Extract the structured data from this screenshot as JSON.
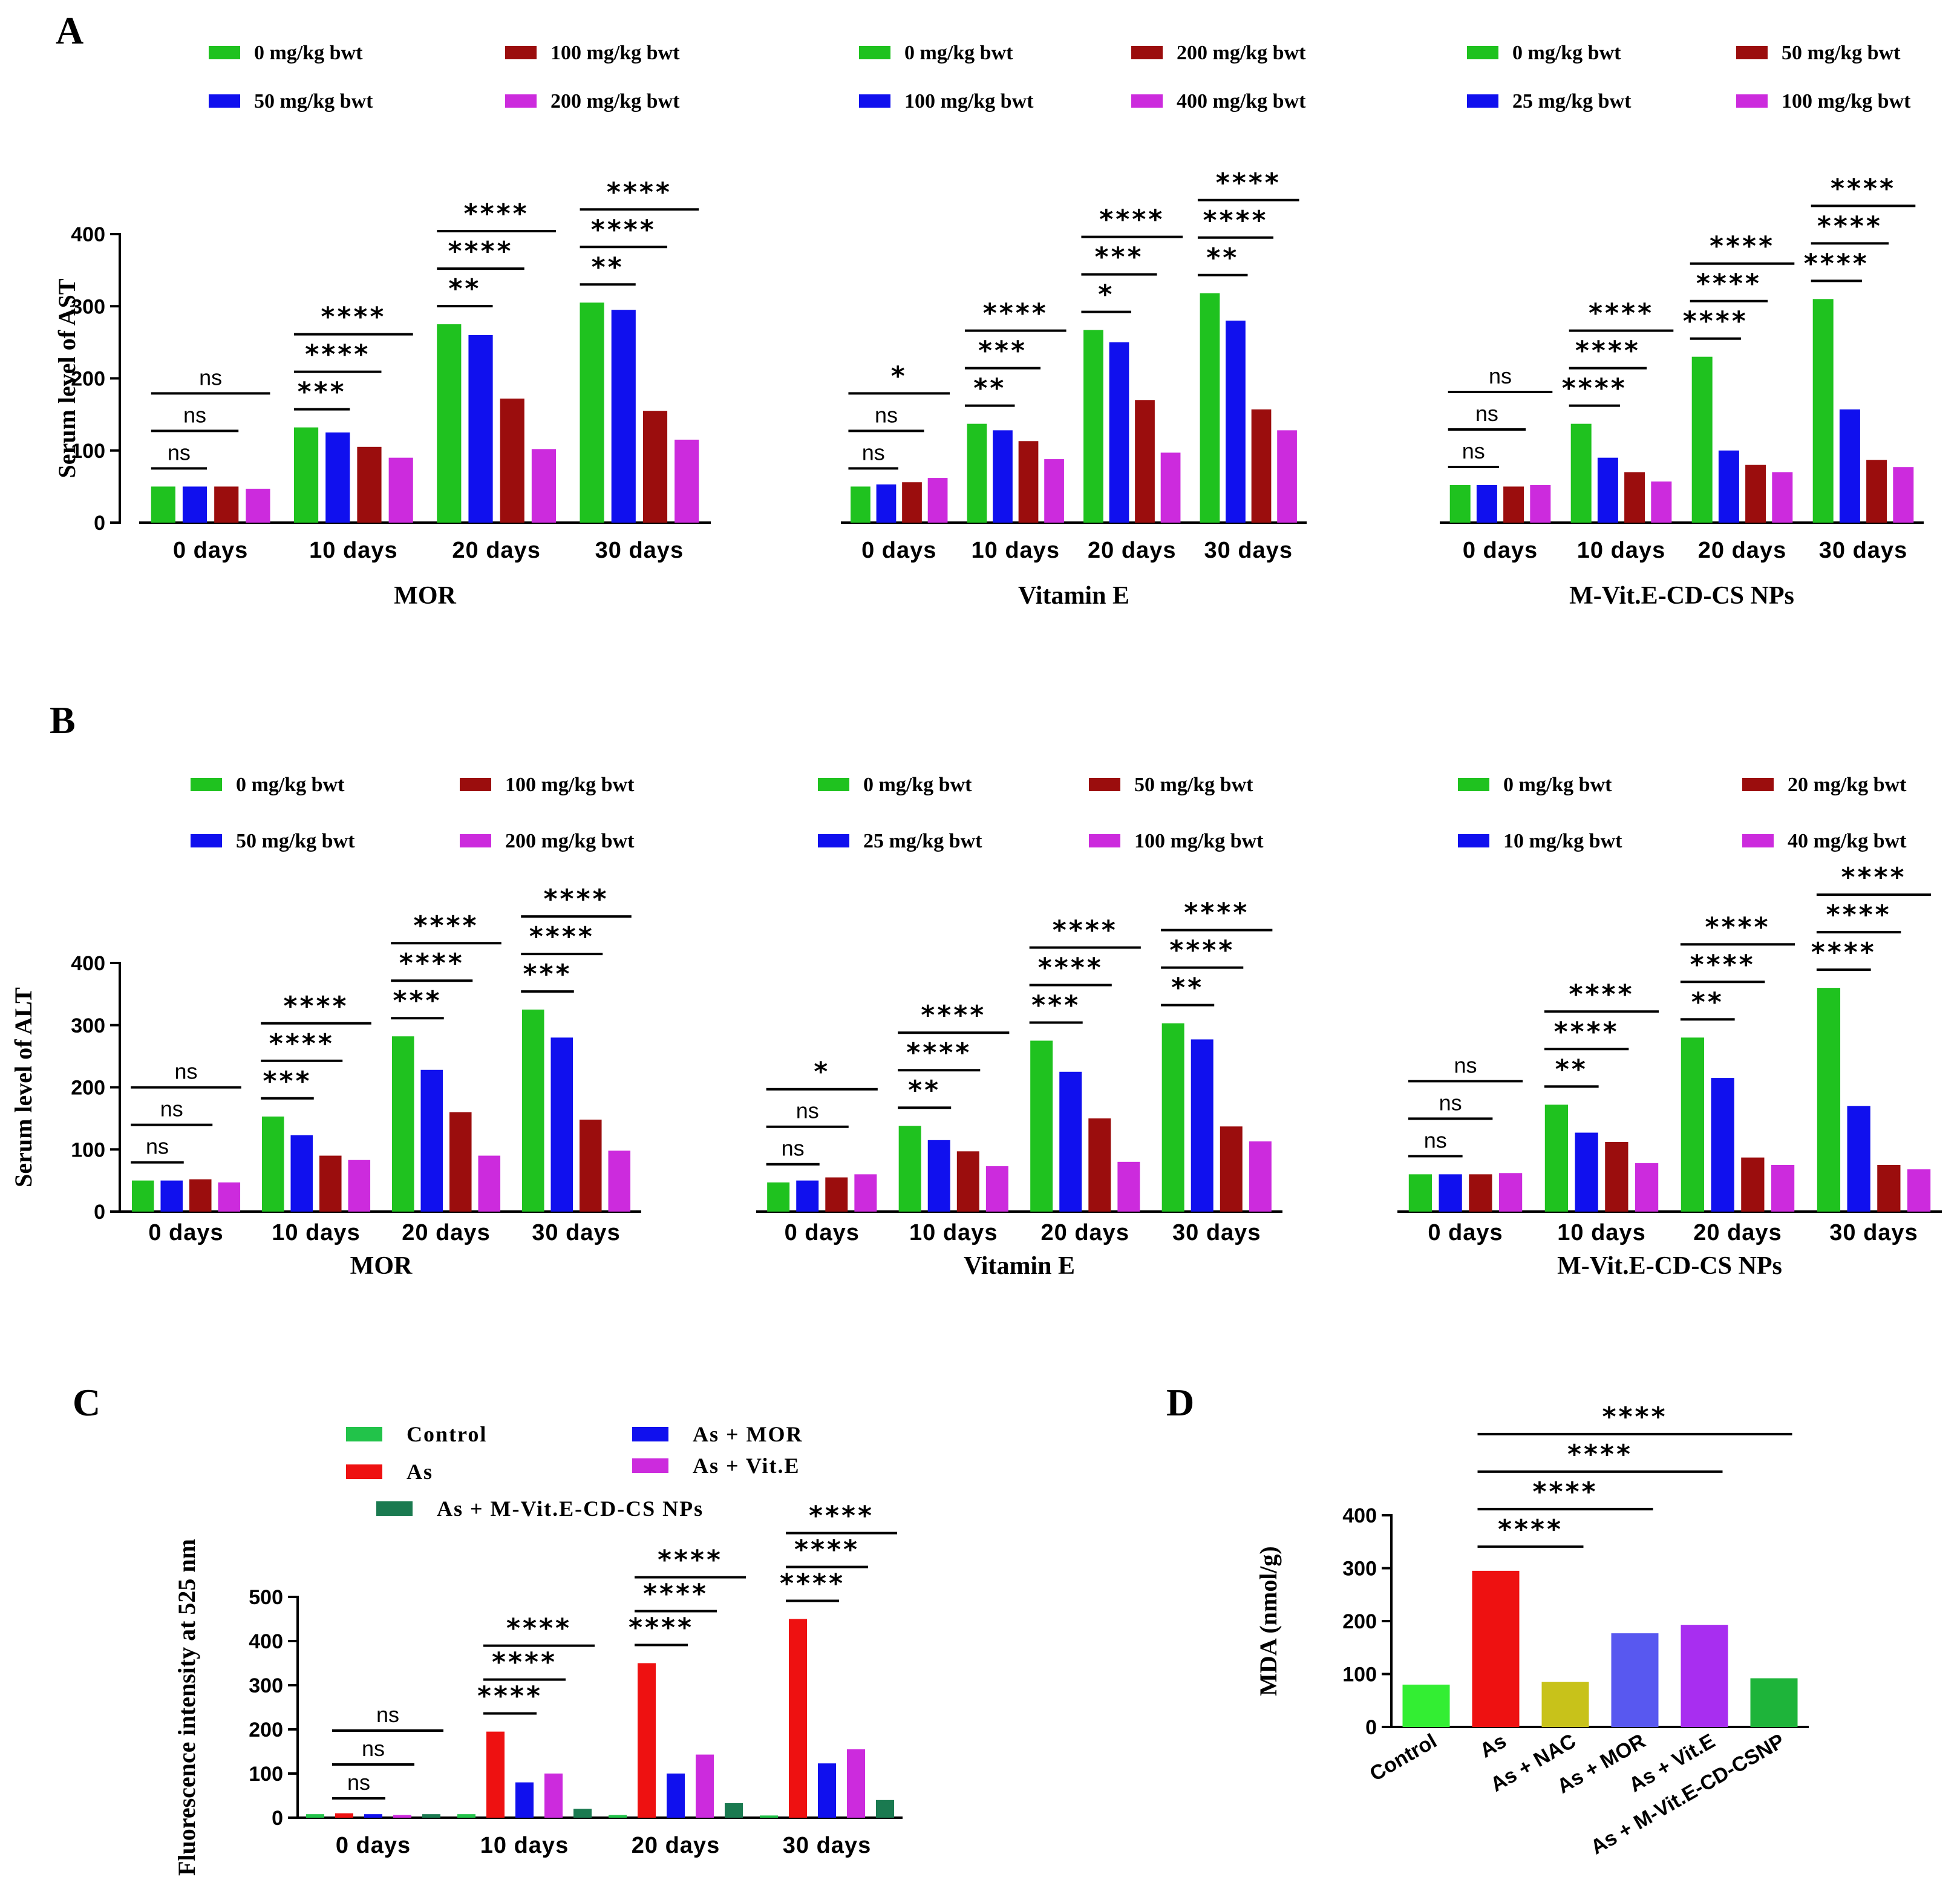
{
  "chart_data": [
    {
      "panel": "A",
      "type": "bar",
      "ylabel": "Serum level of AST",
      "ylim": [
        0,
        400
      ],
      "yticks": [
        0,
        100,
        200,
        300,
        400
      ],
      "colors": [
        "#1fc21f",
        "#1010ee",
        "#9b0d0d",
        "#cc2bdd"
      ],
      "groups": [
        {
          "subtitle": "MOR",
          "legend": [
            "0 mg/kg bwt",
            "50 mg/kg bwt",
            "100 mg/kg bwt",
            "200 mg/kg bwt"
          ],
          "categories": [
            "0 days",
            "10 days",
            "20 days",
            "30 days"
          ],
          "series": [
            {
              "name": "0 mg/kg bwt",
              "values": [
                50,
                132,
                275,
                305
              ]
            },
            {
              "name": "50 mg/kg bwt",
              "values": [
                50,
                125,
                260,
                295
              ]
            },
            {
              "name": "100 mg/kg bwt",
              "values": [
                50,
                105,
                172,
                155
              ]
            },
            {
              "name": "200 mg/kg bwt",
              "values": [
                47,
                90,
                102,
                115
              ]
            }
          ],
          "significance": [
            [
              "ns",
              "ns",
              "ns"
            ],
            [
              "***",
              "****",
              "****"
            ],
            [
              "**",
              "****",
              "****"
            ],
            [
              "**",
              "****",
              "****"
            ]
          ]
        },
        {
          "subtitle": "Vitamin E",
          "legend": [
            "0 mg/kg bwt",
            "100 mg/kg bwt",
            "200 mg/kg bwt",
            "400 mg/kg bwt"
          ],
          "categories": [
            "0 days",
            "10 days",
            "20 days",
            "30 days"
          ],
          "series": [
            {
              "name": "0 mg/kg bwt",
              "values": [
                50,
                137,
                267,
                318
              ]
            },
            {
              "name": "100 mg/kg bwt",
              "values": [
                53,
                128,
                250,
                280
              ]
            },
            {
              "name": "200 mg/kg bwt",
              "values": [
                56,
                113,
                170,
                157
              ]
            },
            {
              "name": "400 mg/kg bwt",
              "values": [
                62,
                88,
                97,
                128
              ]
            }
          ],
          "significance": [
            [
              "ns",
              "ns",
              "*"
            ],
            [
              "**",
              "***",
              "****"
            ],
            [
              "*",
              "***",
              "****"
            ],
            [
              "**",
              "****",
              "****"
            ]
          ]
        },
        {
          "subtitle": "M-Vit.E-CD-CS NPs",
          "legend": [
            "0 mg/kg bwt",
            "25 mg/kg bwt",
            "50 mg/kg bwt",
            "100 mg/kg bwt"
          ],
          "categories": [
            "0 days",
            "10 days",
            "20 days",
            "30 days"
          ],
          "series": [
            {
              "name": "0 mg/kg bwt",
              "values": [
                52,
                137,
                230,
                310
              ]
            },
            {
              "name": "25 mg/kg bwt",
              "values": [
                52,
                90,
                100,
                157
              ]
            },
            {
              "name": "50 mg/kg bwt",
              "values": [
                50,
                70,
                80,
                87
              ]
            },
            {
              "name": "100 mg/kg bwt",
              "values": [
                52,
                57,
                70,
                77
              ]
            }
          ],
          "significance": [
            [
              "ns",
              "ns",
              "ns"
            ],
            [
              "****",
              "****",
              "****"
            ],
            [
              "****",
              "****",
              "****"
            ],
            [
              "****",
              "****",
              "****"
            ]
          ]
        }
      ]
    },
    {
      "panel": "B",
      "type": "bar",
      "ylabel": "Serum level of ALT",
      "ylim": [
        0,
        400
      ],
      "yticks": [
        0,
        100,
        200,
        300,
        400
      ],
      "colors": [
        "#1fc21f",
        "#1010ee",
        "#9b0d0d",
        "#cc2bdd"
      ],
      "groups": [
        {
          "subtitle": "MOR",
          "legend": [
            "0 mg/kg bwt",
            "50 mg/kg bwt",
            "100 mg/kg bwt",
            "200 mg/kg bwt"
          ],
          "categories": [
            "0 days",
            "10 days",
            "20 days",
            "30 days"
          ],
          "series": [
            {
              "name": "0 mg/kg bwt",
              "values": [
                50,
                153,
                282,
                325
              ]
            },
            {
              "name": "50 mg/kg bwt",
              "values": [
                50,
                123,
                228,
                280
              ]
            },
            {
              "name": "100 mg/kg bwt",
              "values": [
                52,
                90,
                160,
                148
              ]
            },
            {
              "name": "200 mg/kg bwt",
              "values": [
                47,
                83,
                90,
                98
              ]
            }
          ],
          "significance": [
            [
              "ns",
              "ns",
              "ns"
            ],
            [
              "***",
              "****",
              "****"
            ],
            [
              "***",
              "****",
              "****"
            ],
            [
              "***",
              "****",
              "****"
            ]
          ]
        },
        {
          "subtitle": "Vitamin E",
          "legend": [
            "0 mg/kg bwt",
            "25 mg/kg bwt",
            "50 mg/kg bwt",
            "100 mg/kg bwt"
          ],
          "categories": [
            "0 days",
            "10 days",
            "20 days",
            "30 days"
          ],
          "series": [
            {
              "name": "0 mg/kg bwt",
              "values": [
                47,
                138,
                275,
                303
              ]
            },
            {
              "name": "25 mg/kg bwt",
              "values": [
                50,
                115,
                225,
                277
              ]
            },
            {
              "name": "50 mg/kg bwt",
              "values": [
                55,
                97,
                150,
                137
              ]
            },
            {
              "name": "100 mg/kg bwt",
              "values": [
                60,
                73,
                80,
                113
              ]
            }
          ],
          "significance": [
            [
              "ns",
              "ns",
              "*"
            ],
            [
              "**",
              "****",
              "****"
            ],
            [
              "***",
              "****",
              "****"
            ],
            [
              "**",
              "****",
              "****"
            ]
          ]
        },
        {
          "subtitle": "M-Vit.E-CD-CS NPs",
          "legend": [
            "0 mg/kg bwt",
            "10 mg/kg bwt",
            "20 mg/kg bwt",
            "40 mg/kg bwt"
          ],
          "categories": [
            "0 days",
            "10 days",
            "20 days",
            "30 days"
          ],
          "series": [
            {
              "name": "0 mg/kg bwt",
              "values": [
                60,
                172,
                280,
                360
              ]
            },
            {
              "name": "10 mg/kg bwt",
              "values": [
                60,
                127,
                215,
                170
              ]
            },
            {
              "name": "20 mg/kg bwt",
              "values": [
                60,
                112,
                87,
                75
              ]
            },
            {
              "name": "40 mg/kg bwt",
              "values": [
                62,
                78,
                75,
                68
              ]
            }
          ],
          "significance": [
            [
              "ns",
              "ns",
              "ns"
            ],
            [
              "**",
              "****",
              "****"
            ],
            [
              "**",
              "****",
              "****"
            ],
            [
              "****",
              "****",
              "****"
            ]
          ]
        }
      ]
    },
    {
      "panel": "C",
      "type": "bar",
      "ylabel": "Fluorescence intensity at 525 nm",
      "ylim": [
        0,
        500
      ],
      "yticks": [
        0,
        100,
        200,
        300,
        400,
        500
      ],
      "legend": [
        "Control",
        "As",
        "As + MOR",
        "As + Vit.E",
        "As + M-Vit.E-CD-CS NPs"
      ],
      "colors": [
        "#22c34a",
        "#ee1111",
        "#1010ee",
        "#cc2bdd",
        "#1a7a50"
      ],
      "categories": [
        "0 days",
        "10 days",
        "20 days",
        "30 days"
      ],
      "series": [
        {
          "name": "Control",
          "values": [
            8,
            8,
            6,
            5
          ]
        },
        {
          "name": "As",
          "values": [
            10,
            195,
            350,
            450
          ]
        },
        {
          "name": "As + MOR",
          "values": [
            8,
            80,
            100,
            123
          ]
        },
        {
          "name": "As + Vit.E",
          "values": [
            6,
            100,
            143,
            155
          ]
        },
        {
          "name": "As + M-Vit.E-CD-CS NPs",
          "values": [
            8,
            20,
            33,
            40
          ]
        }
      ],
      "significance": [
        [
          "ns",
          "ns",
          "ns"
        ],
        [
          "****",
          "****",
          "****"
        ],
        [
          "****",
          "****",
          "****"
        ],
        [
          "****",
          "****",
          "****"
        ]
      ]
    },
    {
      "panel": "D",
      "type": "bar",
      "ylabel": "MDA (nmol/g)",
      "ylim": [
        0,
        400
      ],
      "yticks": [
        0,
        100,
        200,
        300,
        400
      ],
      "categories": [
        "Control",
        "As",
        "As + NAC",
        "As + MOR",
        "As + Vit.E",
        "As + M-Vit.E-CD-CSNP"
      ],
      "values": [
        80,
        295,
        85,
        177,
        193,
        92
      ],
      "colors": [
        "#33ee33",
        "#ee1111",
        "#c8c21a",
        "#5858f0",
        "#a82ef0",
        "#1eb43a"
      ],
      "significance": [
        "****",
        "****",
        "****",
        "****"
      ]
    }
  ]
}
